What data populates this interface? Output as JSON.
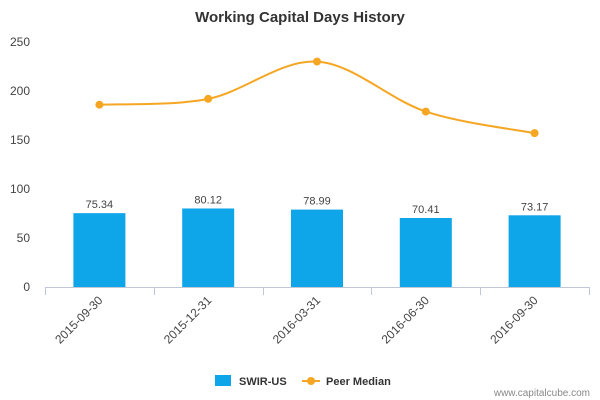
{
  "chart_data": {
    "type": "bar",
    "title": "Working Capital Days History",
    "categories": [
      "2015-09-30",
      "2015-12-31",
      "2016-03-31",
      "2016-06-30",
      "2016-09-30"
    ],
    "ylim": [
      0,
      250
    ],
    "yticks": [
      0,
      50,
      100,
      150,
      200,
      250
    ],
    "series": [
      {
        "name": "SWIR-US",
        "kind": "bar",
        "color": "#0ea5e9",
        "values": [
          75.34,
          80.12,
          78.99,
          70.41,
          73.17
        ],
        "labels": [
          "75.34",
          "80.12",
          "78.99",
          "70.41",
          "73.17"
        ]
      },
      {
        "name": "Peer Median",
        "kind": "line",
        "color": "#f5a623",
        "values": [
          186,
          192,
          230,
          179,
          157
        ]
      }
    ],
    "legend_position": "bottom",
    "grid": false
  },
  "footer": "www.capitalcube.com"
}
